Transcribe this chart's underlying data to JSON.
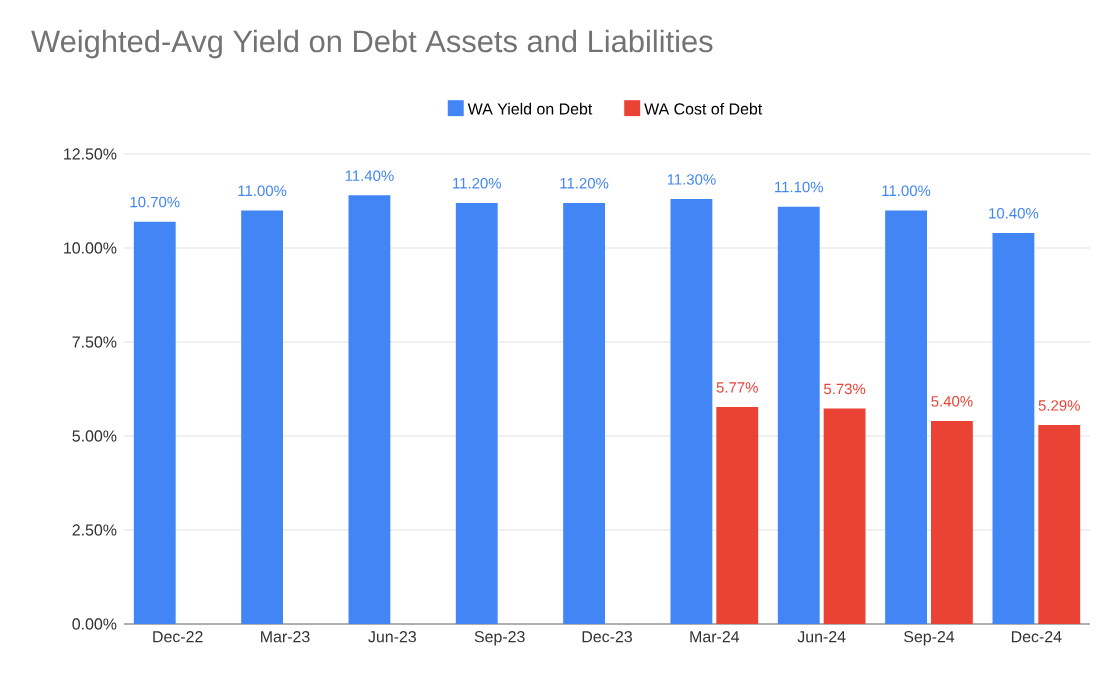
{
  "chart_data": {
    "type": "bar",
    "title": "Weighted-Avg Yield on Debt Assets and Liabilities",
    "categories": [
      "Dec-22",
      "Mar-23",
      "Jun-23",
      "Sep-23",
      "Dec-23",
      "Mar-24",
      "Jun-24",
      "Sep-24",
      "Dec-24"
    ],
    "series": [
      {
        "name": "WA Yield on Debt",
        "color": "#4285f4",
        "values": [
          10.7,
          11.0,
          11.4,
          11.2,
          11.2,
          11.3,
          11.1,
          11.0,
          10.4
        ],
        "value_labels": [
          "10.70%",
          "11.00%",
          "11.40%",
          "11.20%",
          "11.20%",
          "11.30%",
          "11.10%",
          "11.00%",
          "10.40%"
        ]
      },
      {
        "name": "WA Cost of Debt",
        "color": "#ea4335",
        "values": [
          null,
          null,
          null,
          null,
          null,
          5.77,
          5.73,
          5.4,
          5.29
        ],
        "value_labels": [
          null,
          null,
          null,
          null,
          null,
          "5.77%",
          "5.73%",
          "5.40%",
          "5.29%"
        ]
      }
    ],
    "ylim": [
      0,
      12.5
    ],
    "yticks": [
      {
        "value": 0,
        "label": "0.00%"
      },
      {
        "value": 2.5,
        "label": "2.50%"
      },
      {
        "value": 5,
        "label": "5.00%"
      },
      {
        "value": 7.5,
        "label": "7.50%"
      },
      {
        "value": 10,
        "label": "10.00%"
      },
      {
        "value": 12.5,
        "label": "12.50%"
      }
    ],
    "grid": "y",
    "legend": "top"
  }
}
